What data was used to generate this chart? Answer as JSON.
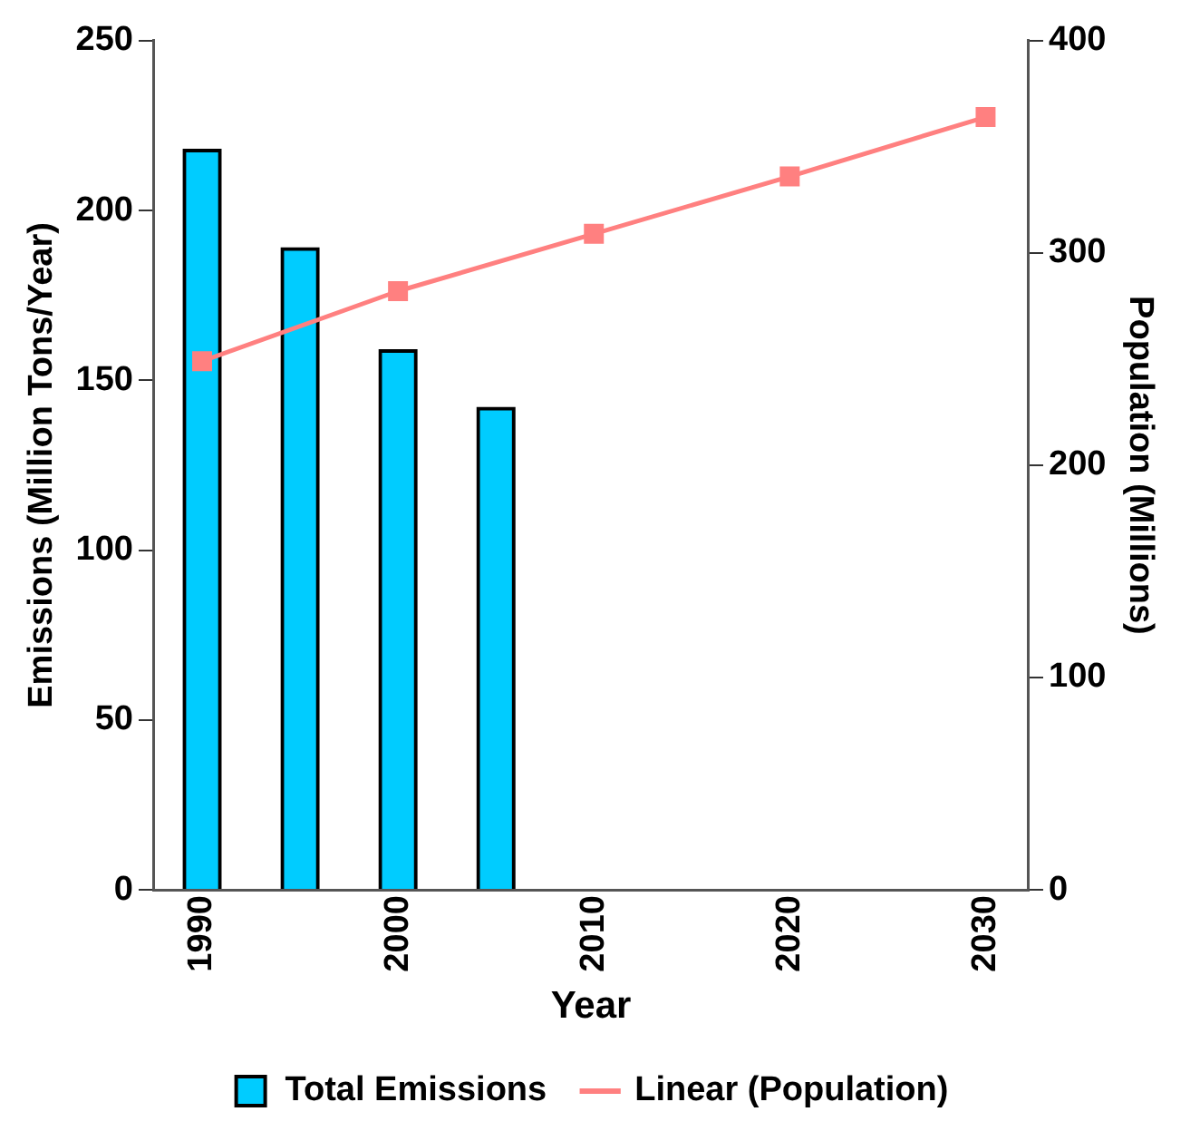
{
  "chart_data": {
    "type": "bar",
    "xlabel": "Year",
    "ylabel": "Emissions (Million Tons/Year)",
    "y2label": "Population (Millions)",
    "series": [
      {
        "name": "Total Emissions",
        "color": "#00ccff",
        "x": [
          1990,
          1995,
          2000,
          2005
        ],
        "values": [
          218,
          189,
          159,
          142
        ]
      },
      {
        "name": "Linear (Population)",
        "type": "line",
        "axis": "y2",
        "color": "#ff8080",
        "marker": "square",
        "x": [
          1990,
          2000,
          2010,
          2020,
          2030
        ],
        "values": [
          249,
          282,
          309,
          336,
          364
        ]
      }
    ],
    "xlim": [
      1987.5,
      2032.2
    ],
    "xticks": [
      1990,
      2000,
      2010,
      2020,
      2030
    ],
    "ylim": [
      0,
      250
    ],
    "yticks": [
      0,
      50,
      100,
      150,
      200,
      250
    ],
    "y2lim": [
      0,
      400
    ],
    "y2ticks": [
      0,
      100,
      200,
      300,
      400
    ],
    "grid": false,
    "legend": "bottom"
  }
}
